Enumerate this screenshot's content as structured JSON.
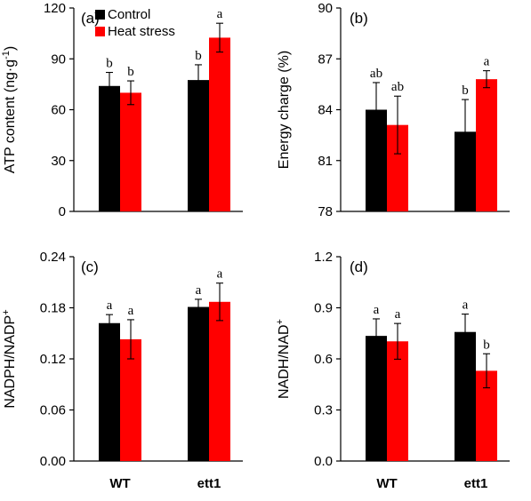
{
  "colors": {
    "control": "#000000",
    "heat": "#ff0000"
  },
  "legend": [
    {
      "label": "Control",
      "color": "#000000"
    },
    {
      "label": "Heat stress",
      "color": "#ff0000"
    }
  ],
  "chart_data": [
    {
      "panel": "(a)",
      "type": "bar",
      "ylabel": "ATP content (ng·g-1)",
      "ylabel_base": "ATP content (ng·g",
      "ylabel_sup": "-1",
      "ylabel_tail": ")",
      "ylim": [
        0,
        120
      ],
      "yticks": [
        "0",
        "30",
        "60",
        "90",
        "120"
      ],
      "categories": [
        "WT",
        "ett1"
      ],
      "show_categories": false,
      "legend": true,
      "series": [
        {
          "name": "Control",
          "values": [
            74,
            77.5
          ],
          "errors": [
            8,
            9
          ],
          "letters": [
            "b",
            "b"
          ]
        },
        {
          "name": "Heat stress",
          "values": [
            70,
            102.5
          ],
          "errors": [
            7,
            8.5
          ],
          "letters": [
            "b",
            "a"
          ]
        }
      ]
    },
    {
      "panel": "(b)",
      "type": "bar",
      "ylabel": "Energy charge (%)",
      "ylim": [
        78,
        90
      ],
      "yticks": [
        "78",
        "81",
        "84",
        "87",
        "90"
      ],
      "categories": [
        "WT",
        "ett1"
      ],
      "show_categories": false,
      "legend": false,
      "series": [
        {
          "name": "Control",
          "values": [
            84.0,
            82.7
          ],
          "errors": [
            1.6,
            1.9
          ],
          "letters": [
            "ab",
            "b"
          ]
        },
        {
          "name": "Heat stress",
          "values": [
            83.1,
            85.8
          ],
          "errors": [
            1.7,
            0.5
          ],
          "letters": [
            "ab",
            "a"
          ]
        }
      ]
    },
    {
      "panel": "(c)",
      "type": "bar",
      "ylabel": "NADPH/NADP+",
      "ylabel_base": "NADPH/NADP",
      "ylabel_sup": "+",
      "ylabel_tail": "",
      "ylim": [
        0,
        0.24
      ],
      "yticks": [
        "0.00",
        "0.06",
        "0.12",
        "0.18",
        "0.24"
      ],
      "categories": [
        "WT",
        "ett1"
      ],
      "show_categories": true,
      "legend": false,
      "series": [
        {
          "name": "Control",
          "values": [
            0.162,
            0.181
          ],
          "errors": [
            0.01,
            0.009
          ],
          "letters": [
            "a",
            "a"
          ]
        },
        {
          "name": "Heat stress",
          "values": [
            0.143,
            0.187
          ],
          "errors": [
            0.023,
            0.022
          ],
          "letters": [
            "a",
            "a"
          ]
        }
      ]
    },
    {
      "panel": "(d)",
      "type": "bar",
      "ylabel": "NADH/NAD+",
      "ylabel_base": "NADH/NAD",
      "ylabel_sup": "+",
      "ylabel_tail": "",
      "ylim": [
        0,
        1.2
      ],
      "yticks": [
        "0.0",
        "0.3",
        "0.6",
        "0.9",
        "1.2"
      ],
      "categories": [
        "WT",
        "ett1"
      ],
      "show_categories": true,
      "legend": false,
      "series": [
        {
          "name": "Control",
          "values": [
            0.735,
            0.758
          ],
          "errors": [
            0.1,
            0.105
          ],
          "letters": [
            "a",
            "a"
          ]
        },
        {
          "name": "Heat stress",
          "values": [
            0.703,
            0.53
          ],
          "errors": [
            0.105,
            0.1
          ],
          "letters": [
            "a",
            "b"
          ]
        }
      ]
    }
  ]
}
